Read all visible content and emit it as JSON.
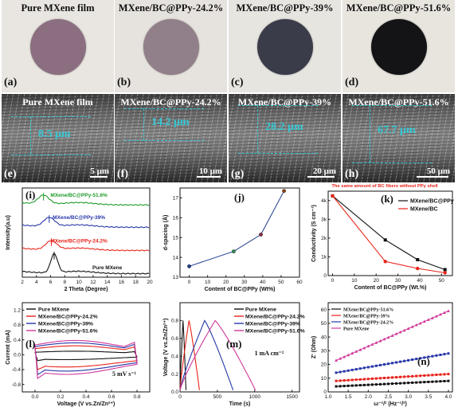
{
  "top_row": [
    {
      "letter": "(a)",
      "title": "Pure MXene film",
      "bg": "#e9e6e1",
      "disc": "#8b6f80"
    },
    {
      "letter": "(b)",
      "title": "MXene/BC@PPy-24.2%",
      "bg": "#e6e3de",
      "disc": "#917f89"
    },
    {
      "letter": "(c)",
      "title": "MXene/BC@PPy-39%",
      "bg": "#e7e5e0",
      "disc": "#3a3c4a"
    },
    {
      "letter": "(d)",
      "title": "MXene/BC@PPy-51.6%",
      "bg": "#e8e5df",
      "disc": "#141416"
    }
  ],
  "sem_row": [
    {
      "letter": "(e)",
      "title": "Pure MXene film",
      "thickness": "8.5 μm",
      "scale": "5 μm"
    },
    {
      "letter": "(f)",
      "title": "MXene/BC@PPy-24.2%",
      "thickness": "14.2 μm",
      "scale": "10 μm"
    },
    {
      "letter": "(g)",
      "title": "MXene/BC@PPy-39%",
      "thickness": "28.2 μm",
      "scale": "20 μm"
    },
    {
      "letter": "(h)",
      "title": "MXene/BC@PPy-51.6%",
      "thickness": "67.7 μm",
      "scale": "50 μm"
    }
  ],
  "chart_data": [
    {
      "panel": "(i)",
      "type": "line",
      "xlabel": "2 Theta (Degree)",
      "ylabel": "Intensity(a.u)",
      "xlim": [
        2,
        20
      ],
      "xticks": [
        2,
        4,
        6,
        8,
        10,
        12,
        14,
        16,
        18,
        20
      ],
      "series": [
        {
          "name": "Pure MXene",
          "color": "#111111",
          "peak": 6.5
        },
        {
          "name": "MXene/BC@PPy-24.2%",
          "color": "#e8231b",
          "peak": 6.1
        },
        {
          "name": "MXene/BC@PPy-39%",
          "color": "#2737a8",
          "peak": 5.8
        },
        {
          "name": "MXene/BC@PPy-51.6%",
          "color": "#1f9a2a",
          "peak": 5.0
        }
      ]
    },
    {
      "panel": "(j)",
      "type": "line",
      "xlabel": "Content of BC@PPy (Wt%)",
      "ylabel": "d-spacing (Å)",
      "xlim": [
        -5,
        60
      ],
      "ylim": [
        13,
        17.5
      ],
      "xticks": [
        0,
        10,
        20,
        30,
        40,
        50,
        60
      ],
      "yticks": [
        13,
        14,
        15,
        16,
        17
      ],
      "x": [
        0,
        24.2,
        39,
        51.6
      ],
      "y": [
        13.55,
        14.3,
        15.15,
        17.35
      ],
      "point_colors": [
        "#1f3b8a",
        "#2e8b57",
        "#8b2e4b",
        "#8b4513"
      ]
    },
    {
      "panel": "(k)",
      "type": "line",
      "title": "The same amount of BC fibers without PPy shell",
      "xlabel": "Content of BC@PPy (Wt.%)",
      "ylabel": "Conductivity (S cm⁻¹)",
      "xlim": [
        -2,
        55
      ],
      "ylim": [
        0,
        4500
      ],
      "xticks": [
        0,
        10,
        20,
        30,
        40,
        50
      ],
      "yticks": [
        0,
        1000,
        2000,
        3000,
        4000
      ],
      "ytick_labels": [
        "0",
        "1k",
        "2k",
        "3k",
        "4k"
      ],
      "legend": "top-right",
      "series": [
        {
          "name": "MXene/BC@PPy",
          "color": "#111111",
          "x": [
            0,
            24.2,
            39,
            51.6
          ],
          "y": [
            4250,
            1900,
            850,
            320
          ]
        },
        {
          "name": "MXene/BC",
          "color": "#e8231b",
          "x": [
            0,
            24.2,
            39,
            51.6
          ],
          "y": [
            4250,
            750,
            380,
            150
          ]
        }
      ]
    },
    {
      "panel": "(l)",
      "type": "line",
      "xlabel": "Voltage (V vs.Zn/Zn²⁺)",
      "ylabel": "Current (mA)",
      "annotation": "5 mV s⁻¹",
      "xlim": [
        -0.1,
        0.9
      ],
      "ylim": [
        -1.0,
        1.4
      ],
      "xticks": [
        0.0,
        0.2,
        0.4,
        0.6,
        0.8
      ],
      "yticks": [
        -0.8,
        -0.4,
        0.0,
        0.4,
        0.8,
        1.2
      ],
      "legend": "top-left",
      "series": [
        {
          "name": "Pure MXene",
          "color": "#111111",
          "amp": 0.12
        },
        {
          "name": "MXene/BC@PPy-24.2%",
          "color": "#e8231b",
          "amp": 0.3
        },
        {
          "name": "MXene/BC@PPy-39%",
          "color": "#2737a8",
          "amp": 0.4
        },
        {
          "name": "MXene/BC@PPy-51.6%",
          "color": "#d0389a",
          "amp": 0.48
        }
      ]
    },
    {
      "panel": "(m)",
      "type": "line",
      "xlabel": "Time (s)",
      "ylabel": "Voltage (V vs.Zn/Zn²⁺)",
      "annotation": "1 mA cm⁻²",
      "xlim": [
        0,
        1600
      ],
      "ylim": [
        0,
        1.0
      ],
      "xticks": [
        0,
        500,
        1000,
        1500
      ],
      "yticks": [
        0.0,
        0.2,
        0.4,
        0.6,
        0.8
      ],
      "legend": "top-right",
      "series": [
        {
          "name": "Pure MXene",
          "color": "#111111",
          "tc": 40,
          "td": 40
        },
        {
          "name": "MXene/BC@PPy-24.2%",
          "color": "#e8231b",
          "tc": 120,
          "td": 140
        },
        {
          "name": "MXene/BC@PPy-39%",
          "color": "#2737a8",
          "tc": 330,
          "td": 380
        },
        {
          "name": "MXene/BC@PPy-51.6%",
          "color": "#d0389a",
          "tc": 470,
          "td": 540
        }
      ]
    },
    {
      "panel": "(n)",
      "type": "line",
      "xlabel": "ω⁻¹/² (Hz⁻¹/²)",
      "ylabel": "Z' (Ohm)",
      "xlim": [
        1.0,
        4.1
      ],
      "ylim": [
        0,
        65
      ],
      "xticks": [
        1.0,
        1.5,
        2.0,
        2.5,
        3.0,
        3.5,
        4.0
      ],
      "yticks": [
        0,
        10,
        20,
        30,
        40,
        50,
        60
      ],
      "legend": "top-left",
      "series": [
        {
          "name": "MXene/BC@PPy-51.6%",
          "color": "#111111",
          "y0": 4,
          "y1": 8
        },
        {
          "name": "MXene/BC@PPy-39%",
          "color": "#e8231b",
          "y0": 8,
          "y1": 13
        },
        {
          "name": "MXene/BC@PPy-24.2%",
          "color": "#2737a8",
          "y0": 14,
          "y1": 28
        },
        {
          "name": "Pure MXene",
          "color": "#d0389a",
          "y0": 23,
          "y1": 59
        }
      ]
    }
  ]
}
